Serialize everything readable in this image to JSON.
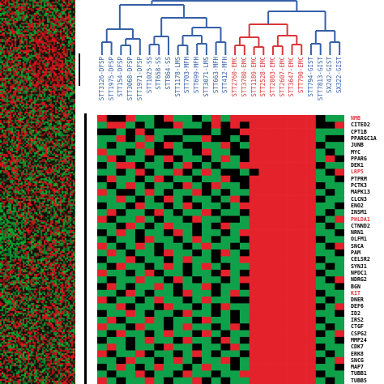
{
  "colors": {
    "cluster_blue": "#3560a8",
    "cluster_red": "#d9373b",
    "heat_high": "#e3222b",
    "heat_low": "#0fa14a",
    "heat_mid": "#000000",
    "heat_na": "#8c8c8c",
    "label_default": "#000000",
    "label_highlight": "#d9373b"
  },
  "samples": [
    {
      "label": "STT3126-DFSP",
      "group": "blue"
    },
    {
      "label": "STT1975-DFSP",
      "group": "blue"
    },
    {
      "label": "STT154-DFSP",
      "group": "blue"
    },
    {
      "label": "STT3068-DFSP",
      "group": "blue"
    },
    {
      "label": "STT1971-DFSP",
      "group": "blue"
    },
    {
      "label": "STT1025-SS",
      "group": "blue"
    },
    {
      "label": "STT658-SS",
      "group": "blue"
    },
    {
      "label": "STT864-SS",
      "group": "blue"
    },
    {
      "label": "STT1178-LMS",
      "group": "blue"
    },
    {
      "label": "STT703-MFH",
      "group": "blue"
    },
    {
      "label": "STT699-MFH",
      "group": "blue"
    },
    {
      "label": "STT3071-LMS",
      "group": "blue"
    },
    {
      "label": "STT663-MFH",
      "group": "blue"
    },
    {
      "label": "STT412-MFH",
      "group": "blue"
    },
    {
      "label": "STT2760-EMC",
      "group": "red"
    },
    {
      "label": "STT3780-EMC",
      "group": "red"
    },
    {
      "label": "STT1189-EMC",
      "group": "red"
    },
    {
      "label": "STT2528-EMC",
      "group": "red"
    },
    {
      "label": "STT2083-EMC",
      "group": "red"
    },
    {
      "label": "STT2607-EMC",
      "group": "red"
    },
    {
      "label": "STT3647-EMC",
      "group": "red"
    },
    {
      "label": "STT790-EMC",
      "group": "red"
    },
    {
      "label": "STT794-GIST",
      "group": "blue"
    },
    {
      "label": "STT7813-GIST",
      "group": "blue"
    },
    {
      "label": "SX242-GIST",
      "group": "blue"
    },
    {
      "label": "SX322-GIST",
      "group": "blue"
    }
  ],
  "genes": [
    {
      "name": "NMB",
      "highlight": true
    },
    {
      "name": "CITED2",
      "highlight": false
    },
    {
      "name": "CPT1B",
      "highlight": false
    },
    {
      "name": "PPARGC1A",
      "highlight": false
    },
    {
      "name": "JUNB",
      "highlight": false
    },
    {
      "name": "MYC",
      "highlight": false
    },
    {
      "name": "PPARG",
      "highlight": false
    },
    {
      "name": "DEK1",
      "highlight": false
    },
    {
      "name": "LRP5",
      "highlight": true
    },
    {
      "name": "PTPRM",
      "highlight": false
    },
    {
      "name": "PCTK3",
      "highlight": false
    },
    {
      "name": "MAPK13",
      "highlight": false
    },
    {
      "name": "CLCN3",
      "highlight": false
    },
    {
      "name": "ENO2",
      "highlight": false
    },
    {
      "name": "INSM1",
      "highlight": false
    },
    {
      "name": "PHLDA1",
      "highlight": true
    },
    {
      "name": "CTNND2",
      "highlight": false
    },
    {
      "name": "NRN1",
      "highlight": false
    },
    {
      "name": "OLFM1",
      "highlight": false
    },
    {
      "name": "SNCA",
      "highlight": false
    },
    {
      "name": "PAM",
      "highlight": false
    },
    {
      "name": "CELSR2",
      "highlight": false
    },
    {
      "name": "SYNJ1",
      "highlight": false
    },
    {
      "name": "NPDC1",
      "highlight": false
    },
    {
      "name": "NDRG2",
      "highlight": false
    },
    {
      "name": "BGN",
      "highlight": false
    },
    {
      "name": "KIT",
      "highlight": true
    },
    {
      "name": "DNER",
      "highlight": false
    },
    {
      "name": "DEF6",
      "highlight": false
    },
    {
      "name": "ID2",
      "highlight": false
    },
    {
      "name": "IRS2",
      "highlight": false
    },
    {
      "name": "CTGF",
      "highlight": false
    },
    {
      "name": "CSPG2",
      "highlight": false
    },
    {
      "name": "MMP24",
      "highlight": false
    },
    {
      "name": "CDK7",
      "highlight": false
    },
    {
      "name": "ERK8",
      "highlight": false
    },
    {
      "name": "SNCG",
      "highlight": false
    },
    {
      "name": "MAP7",
      "highlight": false
    },
    {
      "name": "TUBB1",
      "highlight": false
    },
    {
      "name": "TUBB5",
      "highlight": false
    }
  ],
  "heatmap": {
    "rows": [
      "RKKRGGKRGGKGRGRRRRRRRRRKGG",
      "GRRGKGKKRGGKRKRKRRRRRRRKKR",
      "KKGKRKGGGKKKGKKRRRRRRRRGGG",
      "GGRKGRGKKGGRKKGKRRRRRRRGKK",
      "GKGGRGKRGKKGGRKGRRRRRRRKGG",
      "RGGKGRKKGGKRGGKKRRRRRRRGKG",
      "GRKGGKGRKGGKGRGKRRRRRRRGRK",
      "KGRRKGGKGRKGKGGRRRRRRRRKGG",
      "GGKGRKGGRKGRGKKGKRRRRRRGKR",
      "KRGGKGRKGGKGGRKKRRRRRRRGGK",
      "GKGRGKGGKRGKRGGKRRRRRRRKGG",
      "RGKKGRGKGGRKGKGGRRRRRRRGKG",
      "GGRGKGKRGKGGKGRKRRRRRRRKGG",
      "KGGKRGGKGRKGGKGRRRRRRRRGGK",
      "GRKGGKRGKGGRKGGKRRRRRRRGKG",
      "RKGGRGKGGKRGGKKGRRRRRRRKGR",
      "GGKRGKGRGGKGKRGGRRRRRRRGKG",
      "KGRGKGGKRGKGGKGRRRRRRRRGGK",
      "GKGGKRGGKGRGKGGKRRRRRRRKGG",
      "RGKGRGKGGKGRGGKGRRRRRRRGKR",
      "GRGKGGKRGGKGKRGKRRRRRRRGGK",
      "KGGRKGGKGRGGKGGRRRRRRRRKGG",
      "GKRGGKGRGKGRGKGGRRRRRRRGKG",
      "RGGKGRKGGKGGKRGKRRRRRRRKGG",
      "GKGGRGGKRGKGGKGRRRRRRRRGKR",
      "KRGKGGRGKGGRKGGKRRRRRRRGGK",
      "GGKRGKGGKRGGKGRGRRRRRRRKGG",
      "RKGGKGRGGKGRGGKKRRRRRRRGKG",
      "GGRKGGKRGGKGKRGGRRRRRRRKGR",
      "KGGRGKGGKRGGKGKGRRRRRRRGGK",
      "GRKGGRGKGGKRGGKGRRRRRRRKGG",
      "RGGKRGGKGRGGKGRKRRRRRRRGKG",
      "GKRGGKGRGGKRGKGGRRRRRRRKGR",
      "KGGKGRGGKRGGKRGKRRRRRRRGGK",
      "GRGKGGKRGGKGGKRGRRRRRRRKGG",
      "RKGGRKGGKGRGKGGKRRRRRRRGKG",
      "GGKRGGKGRGKGGRKGRRRRRRRKGR",
      "KGRGKGRGGKGRGGKGRRRRRRRGGK",
      "GKGGRKGGKRGGKGGRRRRRRRRKGG",
      "RGKGGRGKGGRKGKGGRRRRRRRGKG"
    ]
  }
}
